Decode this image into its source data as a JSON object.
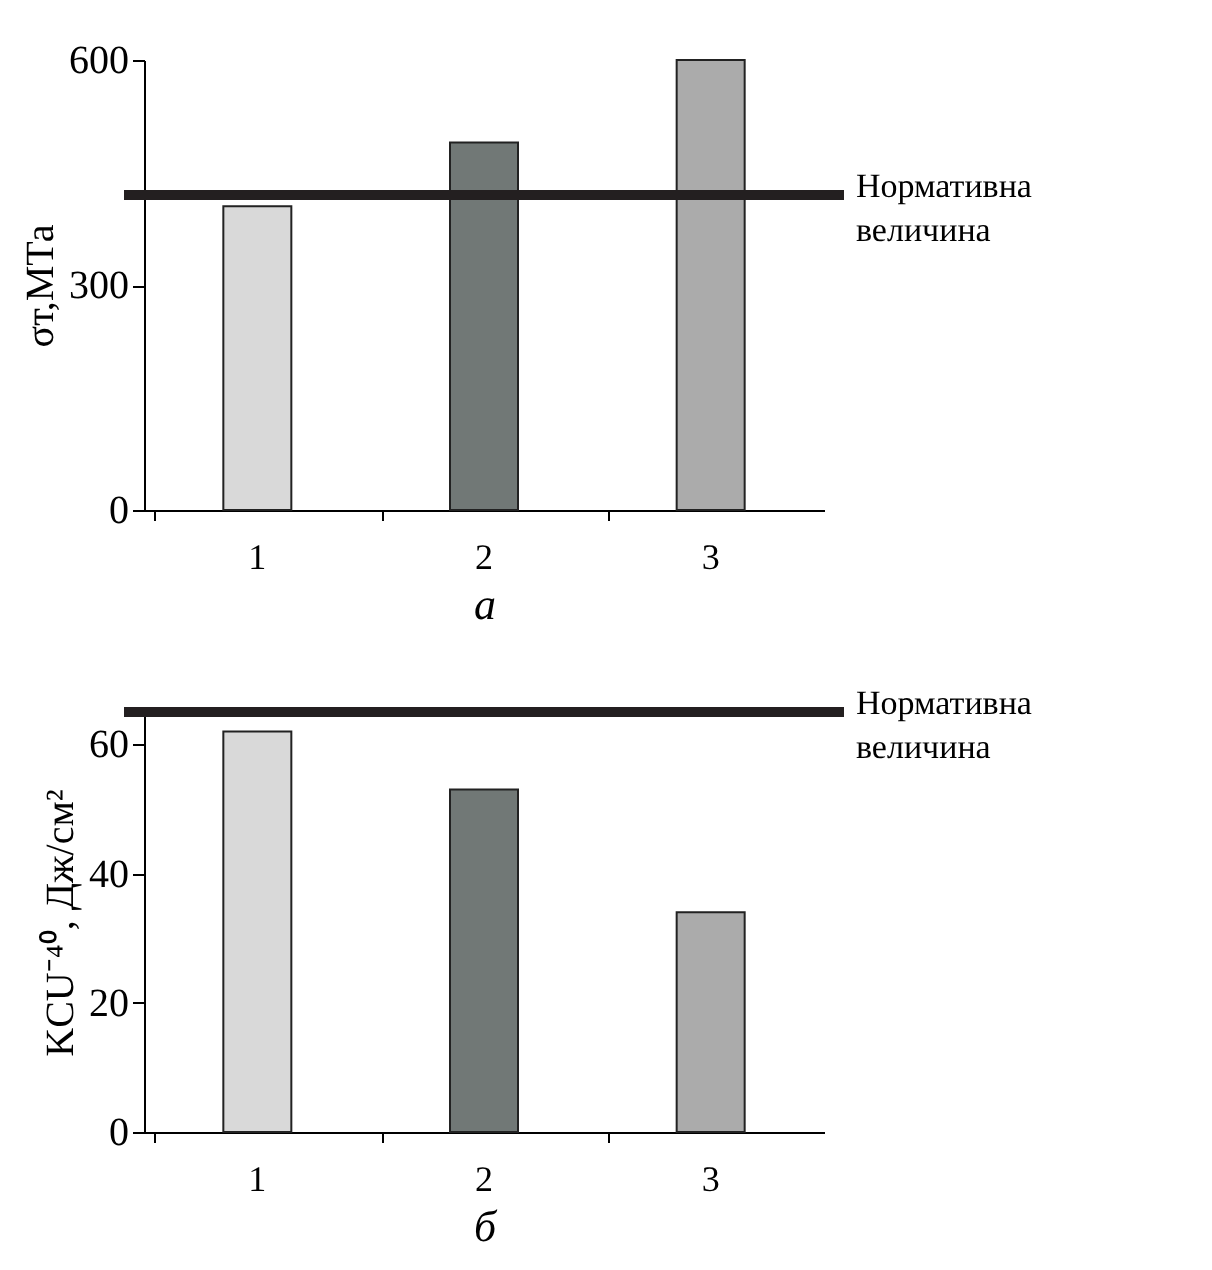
{
  "chart_data": [
    {
      "type": "bar",
      "categories": [
        "1",
        "2",
        "3"
      ],
      "values": [
        405,
        490,
        600
      ],
      "colors": [
        "#d9d9d9",
        "#717876",
        "#ababab"
      ],
      "xlabel": "а",
      "ylabel": "σт,МТа",
      "ylim": [
        0,
        600
      ],
      "yticks": [
        0,
        300,
        600
      ],
      "grid": false,
      "ref_lines": [
        {
          "axis": "y",
          "value": 420,
          "label": "Нормативна величина",
          "color": "#231f20"
        }
      ]
    },
    {
      "type": "bar",
      "categories": [
        "1",
        "2",
        "3"
      ],
      "values": [
        62,
        53,
        34
      ],
      "colors": [
        "#d9d9d9",
        "#717876",
        "#ababab"
      ],
      "xlabel": "б",
      "ylabel": "KCU⁻⁴⁰, Дж/см²",
      "ylim": [
        0,
        65
      ],
      "yticks": [
        0,
        20,
        40,
        60
      ],
      "grid": false,
      "ref_lines": [
        {
          "axis": "y",
          "value": 65,
          "label": "Нормативна величина",
          "color": "#231f20"
        }
      ]
    }
  ]
}
